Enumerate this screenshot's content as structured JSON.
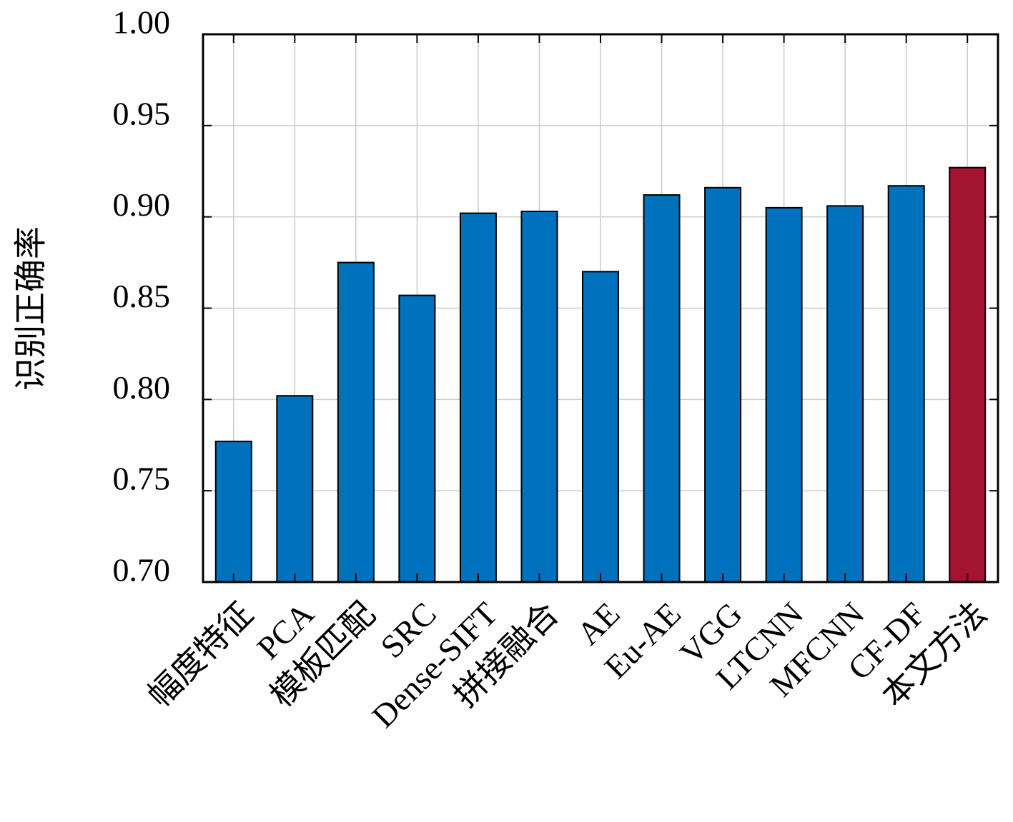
{
  "chart_data": {
    "type": "bar",
    "y_label": "识别正确率",
    "categories": [
      "幅度特征",
      "PCA",
      "模板匹配",
      "SRC",
      "Dense-SIFT",
      "拼接融合",
      "AE",
      "Eu-AE",
      "VGG",
      "LTCNN",
      "MFCNN",
      "CF-DF",
      "本文方法"
    ],
    "values": [
      0.777,
      0.802,
      0.875,
      0.857,
      0.902,
      0.903,
      0.87,
      0.912,
      0.916,
      0.905,
      0.906,
      0.917,
      0.927
    ],
    "colors": [
      "#0072bd",
      "#0072bd",
      "#0072bd",
      "#0072bd",
      "#0072bd",
      "#0072bd",
      "#0072bd",
      "#0072bd",
      "#0072bd",
      "#0072bd",
      "#0072bd",
      "#0072bd",
      "#a2142f"
    ],
    "ylim": [
      0.7,
      1.0
    ],
    "yticks": [
      {
        "value": 0.7,
        "label": "0.70"
      },
      {
        "value": 0.75,
        "label": "0.75"
      },
      {
        "value": 0.8,
        "label": "0.80"
      },
      {
        "value": 0.85,
        "label": "0.85"
      },
      {
        "value": 0.9,
        "label": "0.90"
      },
      {
        "value": 0.95,
        "label": "0.95"
      },
      {
        "value": 1.0,
        "label": "1.00"
      }
    ],
    "grid": true
  }
}
